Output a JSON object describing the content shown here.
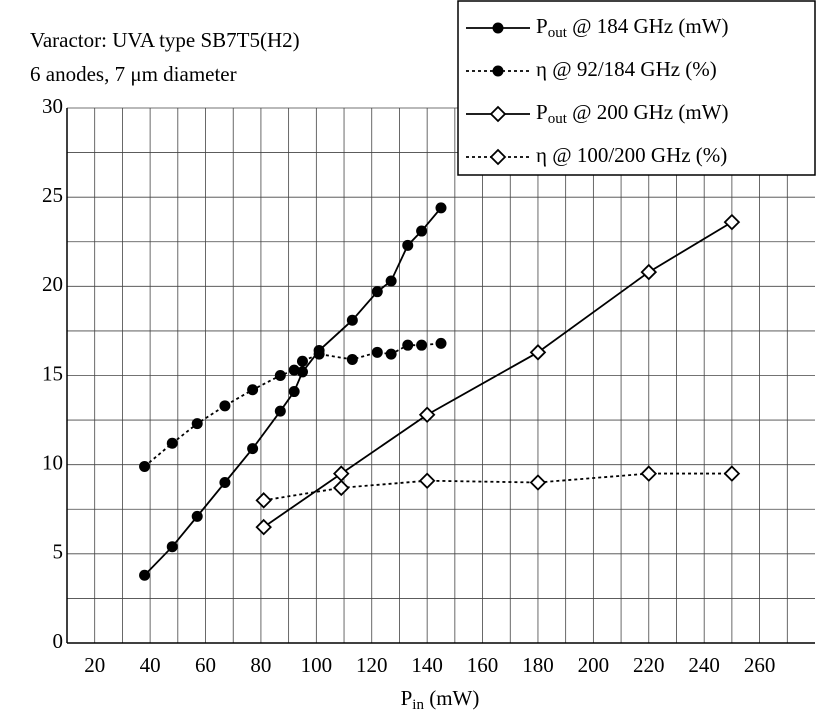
{
  "chart_data": {
    "type": "line",
    "annotations": [
      "Varactor: UVA type SB7T5(H2)",
      "6 anodes,  7 μm diameter"
    ],
    "xlabel": [
      "P",
      "in",
      " (mW)"
    ],
    "xlim": [
      10,
      280
    ],
    "ylim": [
      0,
      30
    ],
    "xticks": [
      20,
      40,
      60,
      80,
      100,
      120,
      140,
      160,
      180,
      200,
      220,
      240,
      260
    ],
    "yticks": [
      0,
      5,
      10,
      15,
      20,
      25,
      30
    ],
    "minor_xticks": [
      10,
      30,
      50,
      70,
      90,
      110,
      130,
      150,
      170,
      190,
      210,
      230,
      250,
      270
    ],
    "minor_yticks": [
      2.5,
      7.5,
      12.5,
      17.5,
      22.5,
      27.5
    ],
    "grid": true,
    "legend": "top-right",
    "series": [
      {
        "name": [
          "P",
          "out",
          " @ 184 GHz  (mW)"
        ],
        "color": "#000000",
        "marker": "circle",
        "dashed": false,
        "x": [
          38,
          48,
          57,
          67,
          77,
          87,
          92,
          95,
          101,
          113,
          122,
          127,
          133,
          138,
          145
        ],
        "values": [
          3.8,
          5.4,
          7.1,
          9.0,
          10.9,
          13.0,
          14.1,
          15.2,
          16.4,
          18.1,
          19.7,
          20.3,
          22.3,
          23.1,
          24.4
        ]
      },
      {
        "name": [
          "η @ 92/184 GHz  (%)"
        ],
        "color": "#000000",
        "marker": "circle",
        "dashed": true,
        "x": [
          38,
          48,
          57,
          67,
          77,
          87,
          92,
          95,
          101,
          113,
          122,
          127,
          133,
          138,
          145
        ],
        "values": [
          9.9,
          11.2,
          12.3,
          13.3,
          14.2,
          15.0,
          15.3,
          15.8,
          16.2,
          15.9,
          16.3,
          16.2,
          16.7,
          16.7,
          16.8
        ]
      },
      {
        "name": [
          "P",
          "out",
          " @ 200 GHz  (mW)"
        ],
        "color": "#000000",
        "marker": "diamond",
        "dashed": false,
        "x": [
          81,
          109,
          140,
          180,
          220,
          250
        ],
        "values": [
          6.5,
          9.5,
          12.8,
          16.3,
          20.8,
          23.6
        ]
      },
      {
        "name": [
          "η @ 100/200 GHz  (%)"
        ],
        "color": "#000000",
        "marker": "diamond",
        "dashed": true,
        "x": [
          81,
          109,
          140,
          180,
          220,
          250
        ],
        "values": [
          8.0,
          8.7,
          9.1,
          9.0,
          9.5,
          9.5
        ]
      }
    ]
  }
}
